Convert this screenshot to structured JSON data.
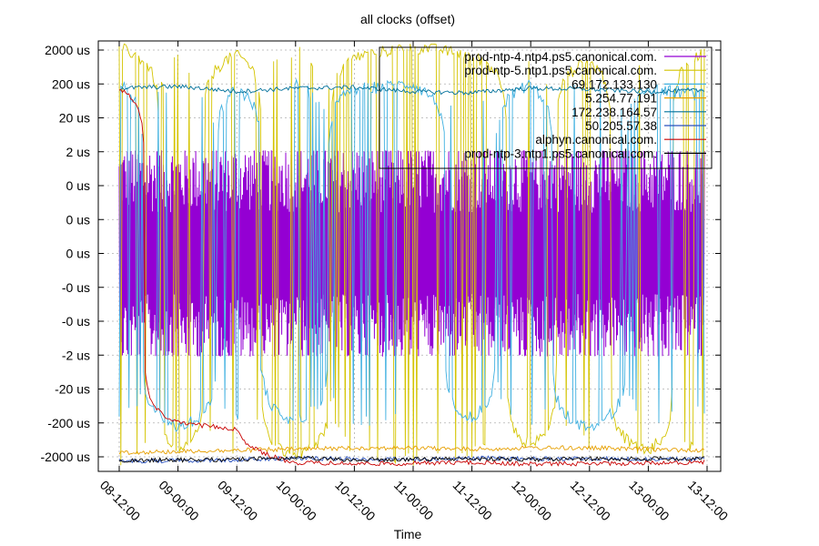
{
  "chart_data": {
    "type": "line",
    "title": "all clocks (offset)",
    "xlabel": "Time",
    "ylabel": "",
    "scale": "symlog",
    "grid": true,
    "legend_position": "top-right",
    "x_range": [
      "08-12:00",
      "13-12:00"
    ],
    "x_ticks": [
      "08-12:00",
      "09-00:00",
      "09-12:00",
      "10-00:00",
      "10-12:00",
      "11-00:00",
      "11-12:00",
      "12-00:00",
      "12-12:00",
      "13-00:00",
      "13-12:00"
    ],
    "y_ticks": [
      "2000 us",
      "200 us",
      "20 us",
      "2 us",
      "0 us",
      "0 us",
      "0 us",
      "-0 us",
      "-0 us",
      "-2 us",
      "-20 us",
      "-200 us",
      "-2000 us"
    ],
    "series": [
      {
        "name": "prod-ntp-4.ntp4.ps5.canonical.com.",
        "color": "#9400d3",
        "values": [
          1.5,
          -1.8,
          1.4,
          -2.0,
          1.6,
          -1.7,
          1.5,
          -1.9,
          1.4,
          -1.8,
          1.5
        ]
      },
      {
        "name": "prod-ntp-5.ntp1.ps5.canonical.com.",
        "color": "#d4c400",
        "values": [
          2500,
          -1200,
          1500,
          -2000,
          1200,
          2600,
          1500,
          -900,
          1000,
          -1500,
          1800
        ]
      },
      {
        "name": "69.172.133.130",
        "color": "#3eb0e0",
        "values": [
          200,
          -300,
          150,
          -200,
          150,
          200,
          -150,
          200,
          -300,
          150,
          100
        ]
      },
      {
        "name": "5.254.77.191",
        "color": "#e69f00",
        "values": [
          -1500,
          -1400,
          -1300,
          -1200,
          -1100,
          -1100,
          -1200,
          -1100,
          -1100,
          -1200,
          -1300
        ]
      },
      {
        "name": "172.238.164.57",
        "color": "#00709a",
        "values": [
          150,
          170,
          120,
          150,
          160,
          120,
          110,
          150,
          140,
          120,
          130
        ]
      },
      {
        "name": "50.205.57.38",
        "color": "#2a52be",
        "values": [
          -2700,
          -2600,
          -2500,
          -2200,
          -2300,
          -2400,
          -2200,
          -2300,
          -2300,
          -2400,
          -2350
        ]
      },
      {
        "name": "alphyn.canonical.com.",
        "color": "#c80000",
        "values": [
          150,
          -200,
          -300,
          -3000,
          -3200,
          -3200,
          -2900,
          -3300,
          -3200,
          -3100,
          -2900
        ]
      },
      {
        "name": "prod-ntp-3.ntp1.ps5.canonical.com.",
        "color": "#000000",
        "values": [
          -2600,
          -2500,
          -2400,
          -2200,
          -2500,
          -2400,
          -2300,
          -2400,
          -2300,
          -2300,
          -2300
        ]
      }
    ]
  }
}
